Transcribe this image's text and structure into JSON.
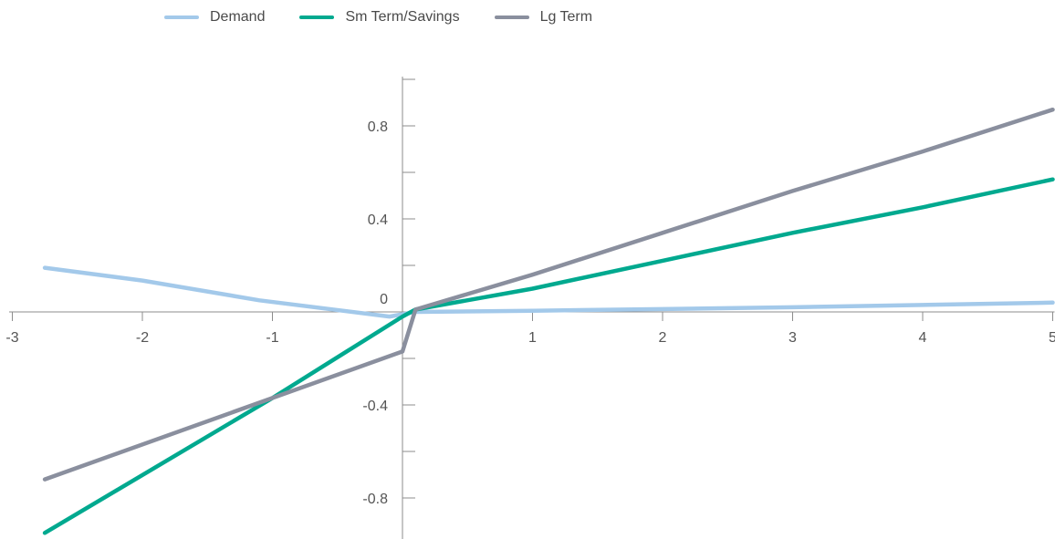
{
  "chart_data": {
    "type": "line",
    "title": "",
    "xlabel": "",
    "ylabel": "",
    "xlim": [
      -3.2,
      5
    ],
    "ylim": [
      -1.0,
      1.0
    ],
    "grid": false,
    "legend_position": "top-left",
    "x_ticks": [
      -3,
      -2,
      -1,
      1,
      2,
      3,
      4,
      5
    ],
    "x_tick_labels": [
      "-3",
      "-2",
      "-1",
      "1",
      "2",
      "3",
      "4",
      "5"
    ],
    "y_labeled_ticks": [
      0.8,
      0.4,
      0,
      -0.4,
      -0.8
    ],
    "y_tick_labels": [
      "0.8",
      "0.4",
      "0",
      "-0.4",
      "-0.8"
    ],
    "y_minor_ticks": [
      1.0,
      0.6,
      0.2,
      -0.2,
      -0.6,
      -1.0
    ],
    "series": [
      {
        "name": "Demand",
        "color": "#a3c9ea",
        "points": [
          [
            -2.75,
            0.19
          ],
          [
            -2.0,
            0.135
          ],
          [
            -1.1,
            0.05
          ],
          [
            -0.1,
            -0.02
          ],
          [
            0.1,
            0.0
          ],
          [
            1.0,
            0.005
          ],
          [
            2.0,
            0.012
          ],
          [
            3.0,
            0.02
          ],
          [
            4.0,
            0.03
          ],
          [
            5.0,
            0.04
          ]
        ]
      },
      {
        "name": "Sm Term/Savings",
        "color": "#00a98f",
        "points": [
          [
            -2.75,
            -0.95
          ],
          [
            -1.0,
            -0.37
          ],
          [
            0.0,
            -0.02
          ],
          [
            0.1,
            0.01
          ],
          [
            1.0,
            0.1
          ],
          [
            2.0,
            0.22
          ],
          [
            3.0,
            0.34
          ],
          [
            4.0,
            0.45
          ],
          [
            5.0,
            0.57
          ]
        ]
      },
      {
        "name": "Lg Term",
        "color": "#8a8f9e",
        "points": [
          [
            -2.75,
            -0.72
          ],
          [
            -1.0,
            -0.37
          ],
          [
            0.0,
            -0.17
          ],
          [
            0.1,
            0.01
          ],
          [
            1.0,
            0.16
          ],
          [
            2.0,
            0.34
          ],
          [
            3.0,
            0.52
          ],
          [
            4.0,
            0.69
          ],
          [
            5.0,
            0.87
          ]
        ]
      }
    ]
  }
}
